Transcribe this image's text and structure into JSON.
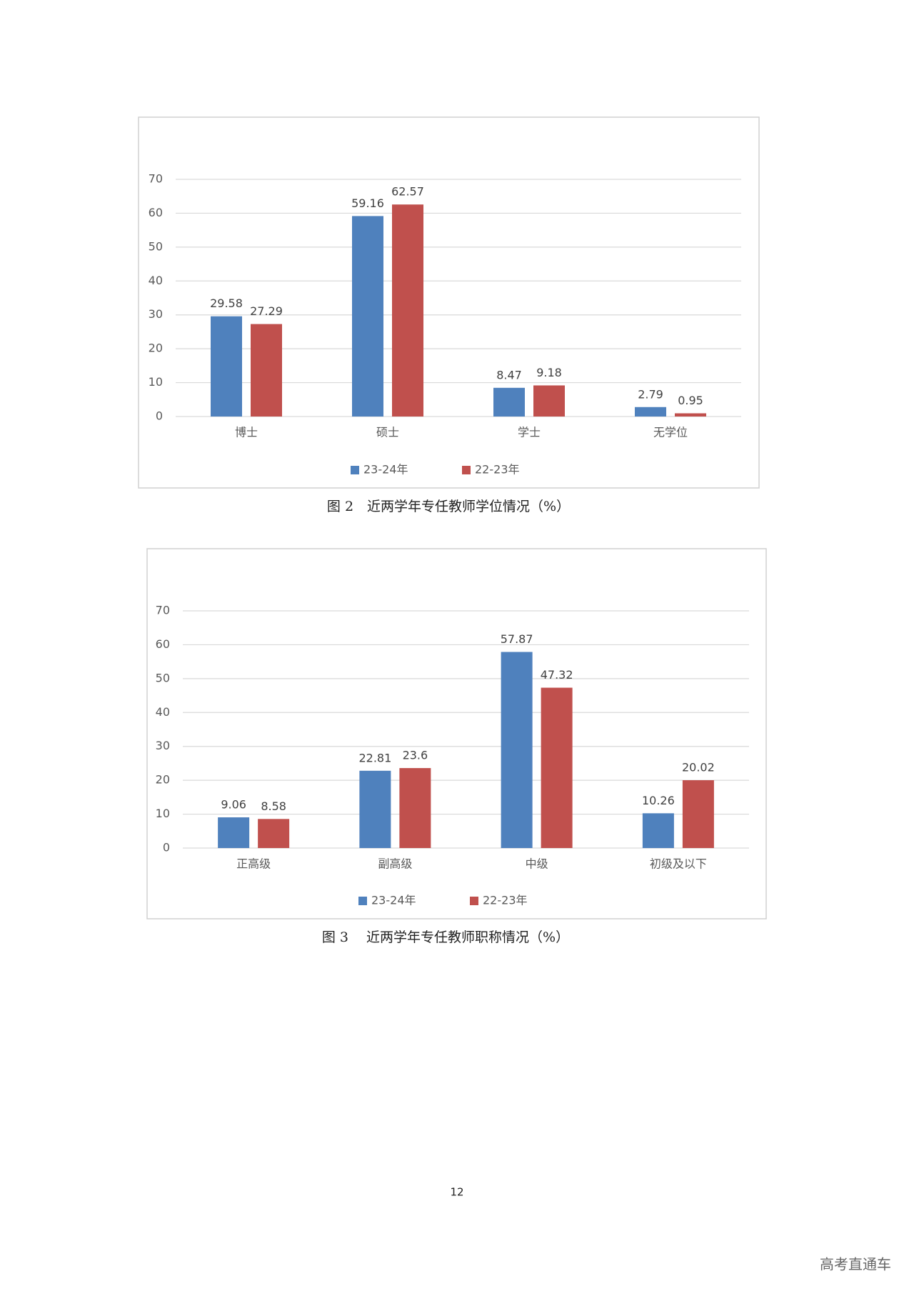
{
  "chart_data": [
    {
      "type": "bar",
      "caption": "图 2　近两学年专任教师学位情况（%）",
      "categories": [
        "博士",
        "硕士",
        "学士",
        "无学位"
      ],
      "series": [
        {
          "name": "23-24年",
          "color": "#4f81bd",
          "values": [
            29.58,
            59.16,
            8.47,
            2.79
          ]
        },
        {
          "name": "22-23年",
          "color": "#c0504d",
          "values": [
            27.29,
            62.57,
            9.18,
            0.95
          ]
        }
      ],
      "ylim": [
        0,
        70
      ],
      "yticks": [
        0,
        10,
        20,
        30,
        40,
        50,
        60,
        70
      ],
      "grid": true,
      "legend": "bottom"
    },
    {
      "type": "bar",
      "caption": "图 3　 近两学年专任教师职称情况（%）",
      "categories": [
        "正高级",
        "副高级",
        "中级",
        "初级及以下"
      ],
      "series": [
        {
          "name": "23-24年",
          "color": "#4f81bd",
          "values": [
            9.06,
            22.81,
            57.87,
            10.26
          ]
        },
        {
          "name": "22-23年",
          "color": "#c0504d",
          "values": [
            8.58,
            23.6,
            47.32,
            20.02
          ]
        }
      ],
      "ylim": [
        0,
        70
      ],
      "yticks": [
        0,
        10,
        20,
        30,
        40,
        50,
        60,
        70
      ],
      "grid": true,
      "legend": "bottom"
    }
  ],
  "page_number": "12",
  "watermark": "高考直通车"
}
